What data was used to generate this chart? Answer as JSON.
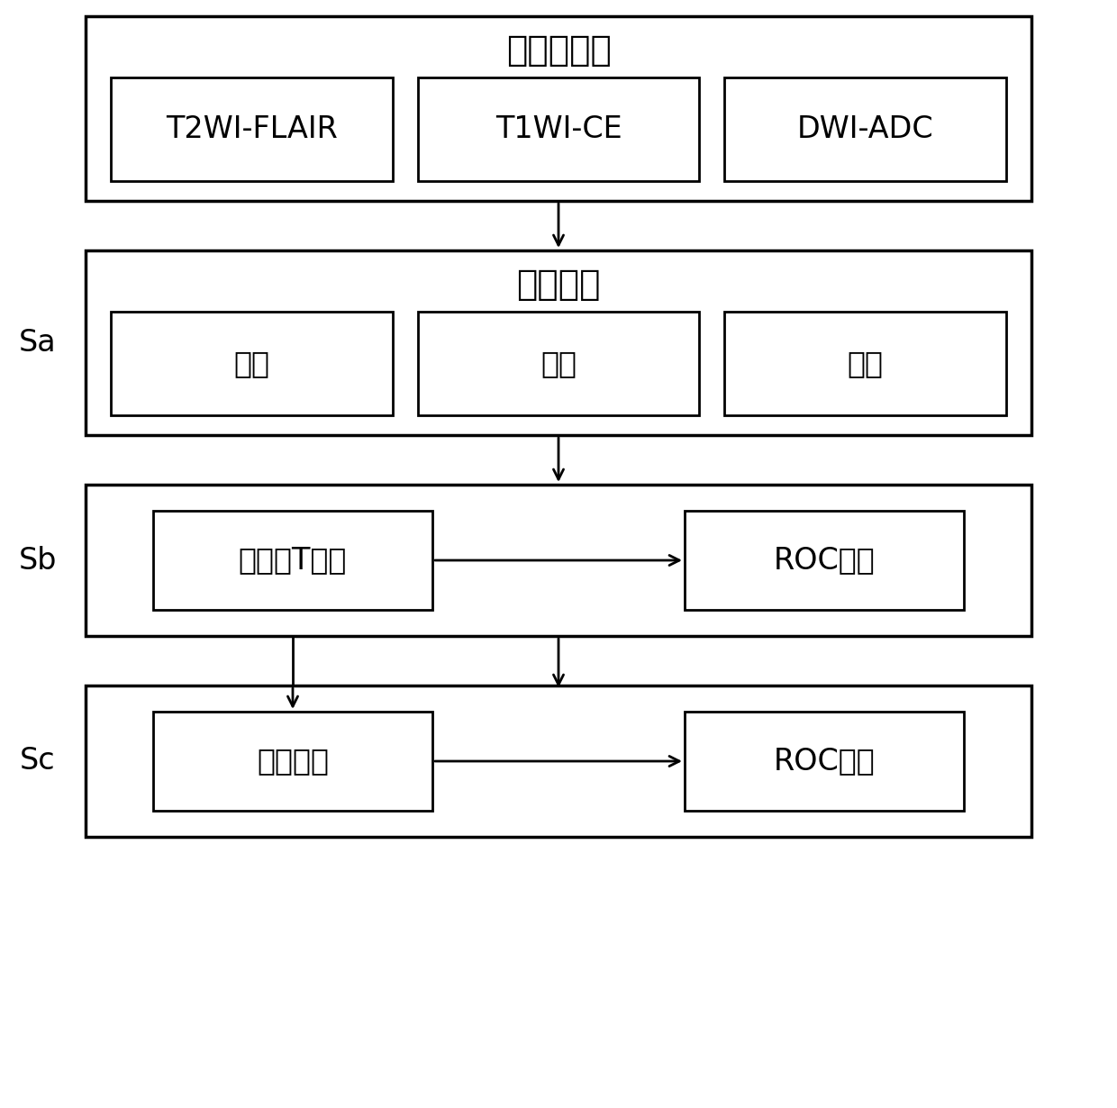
{
  "bg_color": "#ffffff",
  "box_edge_color": "#000000",
  "box_face_color": "#ffffff",
  "text_color": "#000000",
  "font_size_title": 28,
  "font_size_inner_title": 26,
  "font_size_box": 24,
  "font_size_label": 24,
  "section1_title": "磁共振图像",
  "section1_items": [
    "T2WI-FLAIR",
    "T1WI-CE",
    "DWI-ADC"
  ],
  "section2_title": "特征提取",
  "section2_label": "Sa",
  "section2_items": [
    "强度",
    "形状",
    "纹理"
  ],
  "section3_label": "Sb",
  "section3_box1": "双样本T检验",
  "section3_box2": "ROC分析",
  "section4_label": "Sc",
  "section4_box1": "特征组合",
  "section4_box2": "ROC分析"
}
